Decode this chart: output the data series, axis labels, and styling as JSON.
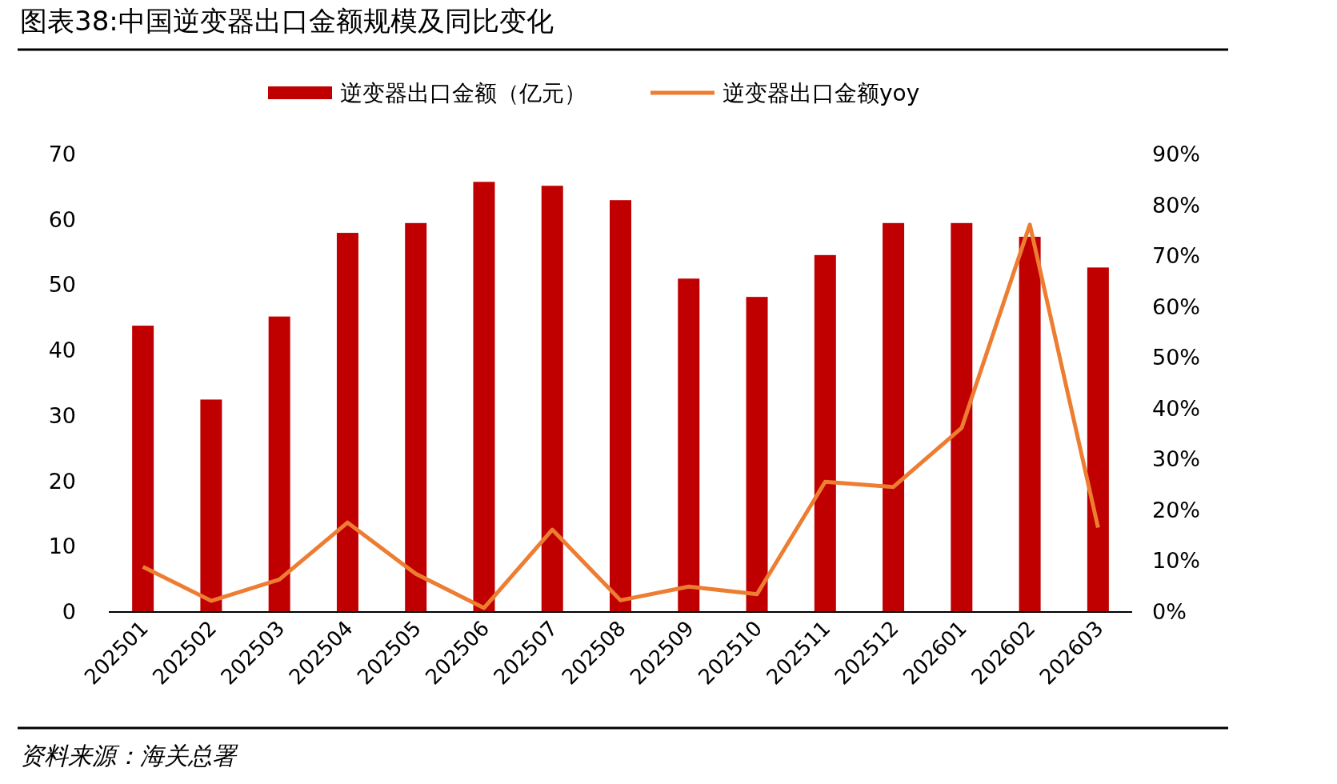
{
  "chart_data": {
    "type": "bar",
    "title": "图表38:中国逆变器出口金额规模及同比变化",
    "categories": [
      "202501",
      "202502",
      "202503",
      "202504",
      "202505",
      "202506",
      "202507",
      "202508",
      "202509",
      "202510",
      "202511",
      "202512",
      "202601",
      "202602",
      "202603"
    ],
    "series": [
      {
        "name": "逆变器出口金额（亿元）",
        "color": "#c00000",
        "values": [
          43.8,
          32.5,
          45.2,
          58.0,
          59.5,
          65.8,
          65.2,
          63.0,
          51.0,
          48.2,
          54.6,
          59.5,
          59.5,
          57.4,
          52.7
        ]
      },
      {
        "name": "逆变器出口金额yoy",
        "type": "line",
        "axis": "y2",
        "color": "#ed7d31",
        "values": [
          8.9,
          2.2,
          6.4,
          17.6,
          7.5,
          0.8,
          16.2,
          2.3,
          5.0,
          3.5,
          25.6,
          24.6,
          36.2,
          76.2,
          16.6
        ]
      }
    ],
    "ylim": [
      0,
      70
    ],
    "yticks": [
      0,
      10,
      20,
      30,
      40,
      50,
      60,
      70
    ],
    "y2lim": [
      0,
      90
    ],
    "y2ticks": [
      {
        "value": 0,
        "label": "0%"
      },
      {
        "value": 10,
        "label": "10%"
      },
      {
        "value": 20,
        "label": "20%"
      },
      {
        "value": 30,
        "label": "30%"
      },
      {
        "value": 40,
        "label": "40%"
      },
      {
        "value": 50,
        "label": "50%"
      },
      {
        "value": 60,
        "label": "60%"
      },
      {
        "value": 70,
        "label": "70%"
      },
      {
        "value": 80,
        "label": "80%"
      },
      {
        "value": 90,
        "label": "90%"
      }
    ],
    "legend": "top",
    "grid": false,
    "annotations": [
      "资料来源：海关总署"
    ]
  }
}
